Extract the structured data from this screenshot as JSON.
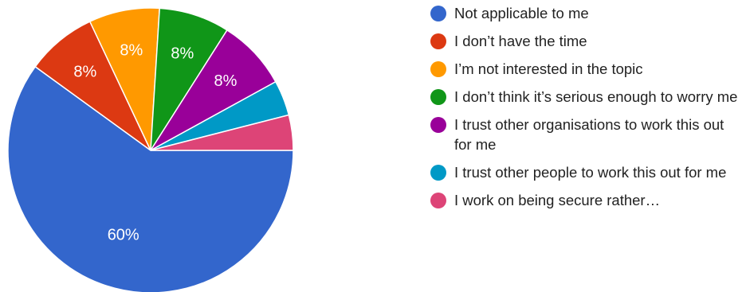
{
  "chart_data": {
    "type": "pie",
    "slices": [
      {
        "label": "Not applicable to me",
        "value": 60,
        "display": "60%",
        "color": "#3366cc"
      },
      {
        "label": "I don’t have the time",
        "value": 8,
        "display": "8%",
        "color": "#dc3912"
      },
      {
        "label": "I’m not interested in the topic",
        "value": 8,
        "display": "8%",
        "color": "#ff9900"
      },
      {
        "label": "I don’t think it’s serious enough to worry me",
        "value": 8,
        "display": "8%",
        "color": "#109618"
      },
      {
        "label": "I trust other organisations to work this out for me",
        "value": 8,
        "display": "8%",
        "color": "#990099"
      },
      {
        "label": "I trust other people to work this out for me",
        "value": 4,
        "display": "",
        "color": "#0099c6"
      },
      {
        "label": "I work on being secure rather…",
        "value": 4,
        "display": "",
        "color": "#dd4477"
      }
    ],
    "legend_position": "right"
  }
}
